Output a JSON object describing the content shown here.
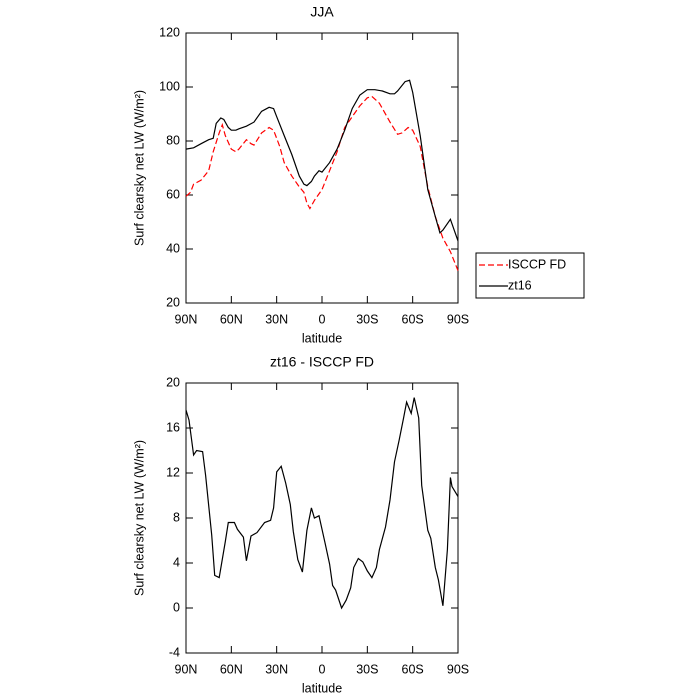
{
  "chart_data": [
    {
      "type": "line",
      "title": "JJA",
      "xlabel": "latitude",
      "ylabel": "Surf clearsky net LW (W/m²)",
      "xlim": [
        90,
        -90
      ],
      "xticks": [
        {
          "value": 90,
          "label": "90N"
        },
        {
          "value": 60,
          "label": "60N"
        },
        {
          "value": 30,
          "label": "30N"
        },
        0,
        {
          "value": -30,
          "label": "30S"
        },
        {
          "value": -60,
          "label": "60S"
        },
        {
          "value": -90,
          "label": "90S"
        }
      ],
      "ylim": [
        20,
        120
      ],
      "yticks": [
        20,
        40,
        60,
        80,
        100,
        120
      ],
      "legend": "outside-right",
      "series": [
        {
          "name": "ISCCP FD",
          "color": "#ff0000",
          "line_style": "dashed",
          "x": [
            90,
            87,
            85,
            80,
            75,
            72,
            68,
            66,
            64,
            60,
            57,
            55,
            50,
            47,
            45,
            40,
            35,
            32,
            28,
            25,
            20,
            15,
            12,
            10,
            8,
            5,
            0,
            -5,
            -10,
            -15,
            -20,
            -25,
            -30,
            -33,
            -38,
            -45,
            -50,
            -53,
            -57,
            -60,
            -65,
            -70,
            -75,
            -80,
            -85,
            -90
          ],
          "values": [
            59.5,
            61,
            64,
            65.5,
            69,
            76,
            83,
            86,
            82,
            77,
            76,
            77,
            80.5,
            79,
            78.5,
            83,
            85,
            84,
            78,
            72,
            67,
            63,
            61,
            57,
            55,
            58,
            62,
            69,
            76,
            85,
            89,
            93,
            96,
            96.5,
            94,
            87,
            82.5,
            83,
            85,
            84,
            78,
            63,
            52,
            44,
            39,
            32
          ]
        },
        {
          "name": "zt16",
          "color": "#000000",
          "line_style": "solid",
          "x": [
            90,
            85,
            80,
            75,
            72,
            70,
            67,
            65,
            62,
            60,
            57,
            55,
            50,
            45,
            40,
            35,
            32,
            30,
            25,
            20,
            15,
            12,
            10,
            7,
            5,
            2,
            0,
            -5,
            -10,
            -15,
            -20,
            -25,
            -30,
            -35,
            -40,
            -45,
            -48,
            -50,
            -55,
            -58,
            -60,
            -65,
            -70,
            -75,
            -78,
            -80,
            -85,
            -90
          ],
          "values": [
            77,
            77.5,
            79,
            80.5,
            81,
            86.5,
            88.5,
            88,
            85,
            84,
            84,
            84.5,
            85.5,
            87,
            91,
            92.5,
            92,
            89,
            82,
            75,
            67,
            64,
            63.5,
            65,
            67,
            69,
            68.5,
            72,
            77,
            84,
            92,
            97,
            99,
            99,
            98.5,
            97.5,
            97.5,
            98.5,
            102,
            102.5,
            98,
            82,
            62,
            52,
            46,
            47,
            51,
            43
          ]
        }
      ]
    },
    {
      "type": "line",
      "title": "zt16 - ISCCP FD",
      "xlabel": "latitude",
      "ylabel": "Surf clearsky net LW (W/m²)",
      "xlim": [
        90,
        -90
      ],
      "xticks": [
        {
          "value": 90,
          "label": "90N"
        },
        {
          "value": 60,
          "label": "60N"
        },
        {
          "value": 30,
          "label": "30N"
        },
        0,
        {
          "value": -30,
          "label": "30S"
        },
        {
          "value": -60,
          "label": "60S"
        },
        {
          "value": -90,
          "label": "90S"
        }
      ],
      "ylim": [
        -4,
        20
      ],
      "yticks": [
        -4,
        0,
        4,
        8,
        12,
        16,
        20
      ],
      "series": [
        {
          "color": "#000000",
          "line_style": "solid",
          "x": [
            90,
            88,
            85,
            83,
            79,
            77,
            73,
            71,
            68,
            64,
            62,
            58,
            56,
            52,
            50,
            47,
            43,
            38,
            34,
            32,
            30,
            27,
            24,
            21,
            19,
            16,
            13,
            10,
            7,
            5,
            2,
            -2,
            -5,
            -7,
            -9,
            -13,
            -16,
            -19,
            -21,
            -24,
            -27,
            -30,
            -33,
            -36,
            -38,
            -42,
            -45,
            -48,
            -51,
            -54,
            -56,
            -59,
            -61,
            -64,
            -66,
            -70,
            -72,
            -75,
            -77,
            -80,
            -83,
            -85,
            -86,
            -90
          ],
          "values": [
            17.6,
            16.7,
            13.6,
            14.0,
            13.9,
            11.8,
            6.5,
            2.9,
            2.7,
            5.9,
            7.6,
            7.6,
            7.0,
            6.3,
            4.2,
            6.4,
            6.7,
            7.6,
            7.8,
            8.9,
            12.1,
            12.6,
            11.1,
            9.2,
            6.8,
            4.3,
            3.2,
            6.9,
            8.9,
            8.0,
            8.2,
            5.8,
            3.9,
            2.0,
            1.6,
            0,
            0.7,
            1.8,
            3.6,
            4.4,
            4.1,
            3.3,
            2.7,
            3.6,
            5.2,
            7.2,
            9.6,
            13.0,
            14.9,
            16.9,
            18.3,
            17.3,
            18.7,
            16.9,
            10.9,
            6.9,
            6.2,
            3.6,
            2.5,
            0.2,
            5.2,
            11.6,
            10.8,
            9.9
          ]
        }
      ]
    }
  ]
}
